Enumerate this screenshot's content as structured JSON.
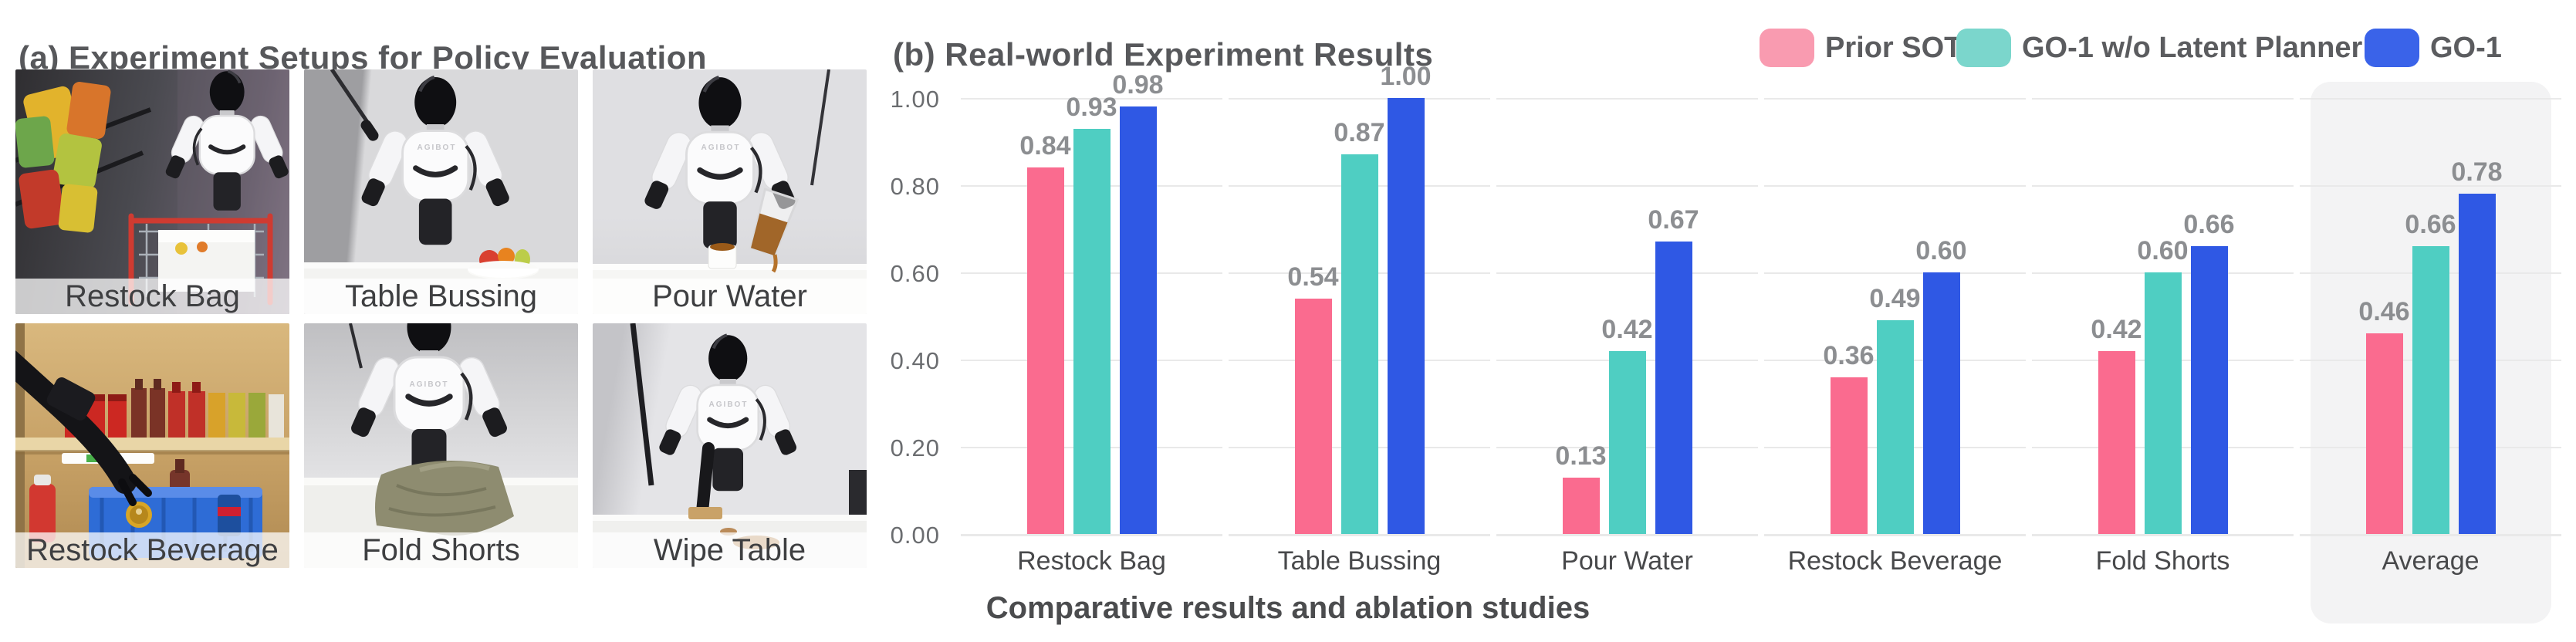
{
  "panel_a": {
    "title": "(a) Experiment Setups for Policy Evaluation",
    "robot_brand": "AGIBOT",
    "photos": [
      {
        "label": "Restock Bag"
      },
      {
        "label": "Table Bussing"
      },
      {
        "label": "Pour Water"
      },
      {
        "label": "Restock Beverage"
      },
      {
        "label": "Fold Shorts"
      },
      {
        "label": "Wipe Table"
      }
    ]
  },
  "panel_b": {
    "title": "(b) Real-world Experiment Results",
    "caption": "Comparative results and ablation studies"
  },
  "chart_data": {
    "type": "bar",
    "title": "(b) Real-world Experiment Results",
    "categories": [
      "Restock Bag",
      "Table Bussing",
      "Pour Water",
      "Restock Beverage",
      "Fold Shorts",
      "Average"
    ],
    "series": [
      {
        "name": "Prior SOTA",
        "color": "#FA6B8F",
        "legend_color": "#F99BB0",
        "values": [
          0.84,
          0.54,
          0.13,
          0.36,
          0.42,
          0.46
        ]
      },
      {
        "name": "GO-1 w/o Latent Planner",
        "color": "#4FCEC2",
        "legend_color": "#7BD6CC",
        "values": [
          0.93,
          0.87,
          0.42,
          0.49,
          0.6,
          0.66
        ]
      },
      {
        "name": "GO-1",
        "color": "#2F58E4",
        "legend_color": "#3A63E9",
        "values": [
          0.98,
          1.0,
          0.67,
          0.6,
          0.66,
          0.78
        ]
      }
    ],
    "xlabel": "",
    "ylabel": "",
    "ylim": [
      0,
      1.0
    ],
    "yticks": [
      "0.00",
      "0.20",
      "0.40",
      "0.60",
      "0.80",
      "1.00"
    ],
    "grid": true,
    "legend_position": "top-right",
    "highlight_category": "Average",
    "value_labels": "shown above each bar, two decimals",
    "grid_color": "#E9E9E9",
    "highlight_color": "#F3F3F4"
  }
}
